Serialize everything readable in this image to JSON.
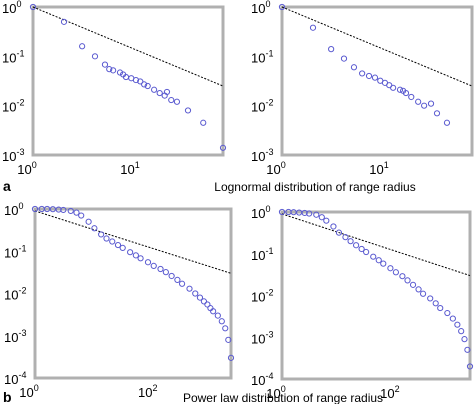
{
  "panel_letters": [
    "a",
    "b"
  ],
  "captions": [
    "Lognormal distribution of range radius",
    "Power law distribution of range radius"
  ],
  "colors": {
    "marker": "#5a5ad0",
    "fit_line": "#000000",
    "frame": "#b0b0b0",
    "background": "#ffffff"
  },
  "chart_data": [
    {
      "type": "scatter",
      "scale": "log-log",
      "xlim": [
        1,
        70
      ],
      "ylim": [
        0.001,
        1
      ],
      "xticks": [
        {
          "base": "10",
          "exp": "0"
        },
        {
          "base": "10",
          "exp": "1"
        }
      ],
      "yticks": [
        {
          "base": "10",
          "exp": "0"
        },
        {
          "base": "10",
          "exp": "-1"
        },
        {
          "base": "10",
          "exp": "-2"
        },
        {
          "base": "10",
          "exp": "-3"
        }
      ],
      "fit_line": [
        [
          1,
          1
        ],
        [
          70,
          0.025
        ]
      ],
      "series": [
        {
          "x": [
            1,
            2,
            3,
            4,
            5,
            5.5,
            6,
            7,
            7.5,
            8,
            9,
            10,
            11,
            12,
            13,
            15,
            17,
            19,
            20,
            22,
            25,
            32,
            45,
            70
          ],
          "y": [
            1,
            0.5,
            0.16,
            0.1,
            0.068,
            0.055,
            0.052,
            0.047,
            0.043,
            0.038,
            0.036,
            0.033,
            0.031,
            0.027,
            0.025,
            0.021,
            0.018,
            0.016,
            0.019,
            0.013,
            0.012,
            0.008,
            0.0045,
            0.0014
          ]
        }
      ]
    },
    {
      "type": "scatter",
      "scale": "log-log",
      "xlim": [
        1,
        70
      ],
      "ylim": [
        0.001,
        1
      ],
      "xticks": [
        {
          "base": "10",
          "exp": "0"
        },
        {
          "base": "10",
          "exp": "1"
        }
      ],
      "yticks": [
        {
          "base": "10",
          "exp": "0"
        },
        {
          "base": "10",
          "exp": "-1"
        },
        {
          "base": "10",
          "exp": "-2"
        },
        {
          "base": "10",
          "exp": "-3"
        }
      ],
      "fit_line": [
        [
          1,
          1
        ],
        [
          70,
          0.025
        ]
      ],
      "series": [
        {
          "x": [
            1,
            2,
            3,
            4,
            5,
            6,
            7,
            8,
            9,
            10,
            11,
            12,
            14,
            15,
            16,
            18,
            21,
            24,
            28,
            32,
            40
          ],
          "y": [
            1,
            0.38,
            0.14,
            0.09,
            0.06,
            0.045,
            0.04,
            0.037,
            0.032,
            0.029,
            0.026,
            0.023,
            0.021,
            0.02,
            0.018,
            0.015,
            0.012,
            0.01,
            0.011,
            0.007,
            0.0045
          ]
        }
      ]
    },
    {
      "type": "scatter",
      "scale": "log-log",
      "xlim": [
        1,
        2000
      ],
      "ylim": [
        0.0001,
        1
      ],
      "xticks": [
        {
          "base": "10",
          "exp": "0"
        },
        {
          "base": "10",
          "exp": "2"
        }
      ],
      "yticks": [
        {
          "base": "10",
          "exp": "0"
        },
        {
          "base": "10",
          "exp": "-1"
        },
        {
          "base": "10",
          "exp": "-2"
        },
        {
          "base": "10",
          "exp": "-3"
        },
        {
          "base": "10",
          "exp": "-4"
        }
      ],
      "fit_line": [
        [
          1,
          0.9
        ],
        [
          2000,
          0.03
        ]
      ],
      "series": [
        {
          "x": [
            1,
            1.3,
            1.6,
            2,
            2.5,
            3,
            4,
            5,
            6,
            8,
            10,
            13,
            16,
            20,
            25,
            30,
            40,
            50,
            60,
            80,
            100,
            130,
            160,
            200,
            250,
            300,
            400,
            500,
            600,
            700,
            800,
            900,
            1000,
            1200,
            1400,
            1600,
            1800,
            2000
          ],
          "y": [
            1,
            1,
            1,
            0.99,
            0.97,
            0.95,
            0.9,
            0.82,
            0.7,
            0.5,
            0.35,
            0.25,
            0.2,
            0.17,
            0.14,
            0.12,
            0.095,
            0.08,
            0.068,
            0.055,
            0.045,
            0.038,
            0.032,
            0.026,
            0.021,
            0.017,
            0.013,
            0.01,
            0.008,
            0.0065,
            0.0055,
            0.0045,
            0.0038,
            0.003,
            0.0022,
            0.0015,
            0.0008,
            0.0003
          ]
        }
      ]
    },
    {
      "type": "scatter",
      "scale": "log-log",
      "xlim": [
        1,
        2000
      ],
      "ylim": [
        0.0001,
        1
      ],
      "xticks": [
        {
          "base": "10",
          "exp": "0"
        },
        {
          "base": "10",
          "exp": "2"
        }
      ],
      "yticks": [
        {
          "base": "10",
          "exp": "0"
        },
        {
          "base": "10",
          "exp": "-1"
        },
        {
          "base": "10",
          "exp": "-2"
        },
        {
          "base": "10",
          "exp": "-3"
        },
        {
          "base": "10",
          "exp": "-4"
        }
      ],
      "fit_line": [
        [
          1,
          0.9
        ],
        [
          2000,
          0.03
        ]
      ],
      "series": [
        {
          "x": [
            1,
            1.3,
            1.6,
            2,
            2.5,
            3,
            4,
            5,
            6,
            8,
            10,
            13,
            16,
            20,
            25,
            30,
            40,
            50,
            60,
            80,
            100,
            130,
            160,
            200,
            250,
            300,
            400,
            500,
            600,
            800,
            1000,
            1200,
            1400,
            1600,
            1800,
            2000
          ],
          "y": [
            1,
            1,
            0.99,
            0.97,
            0.95,
            0.92,
            0.86,
            0.75,
            0.62,
            0.45,
            0.32,
            0.25,
            0.2,
            0.16,
            0.13,
            0.11,
            0.085,
            0.07,
            0.058,
            0.045,
            0.036,
            0.029,
            0.023,
            0.018,
            0.014,
            0.011,
            0.0085,
            0.0065,
            0.005,
            0.0038,
            0.0028,
            0.002,
            0.0014,
            0.0009,
            0.0005,
            0.0002
          ]
        }
      ]
    }
  ]
}
